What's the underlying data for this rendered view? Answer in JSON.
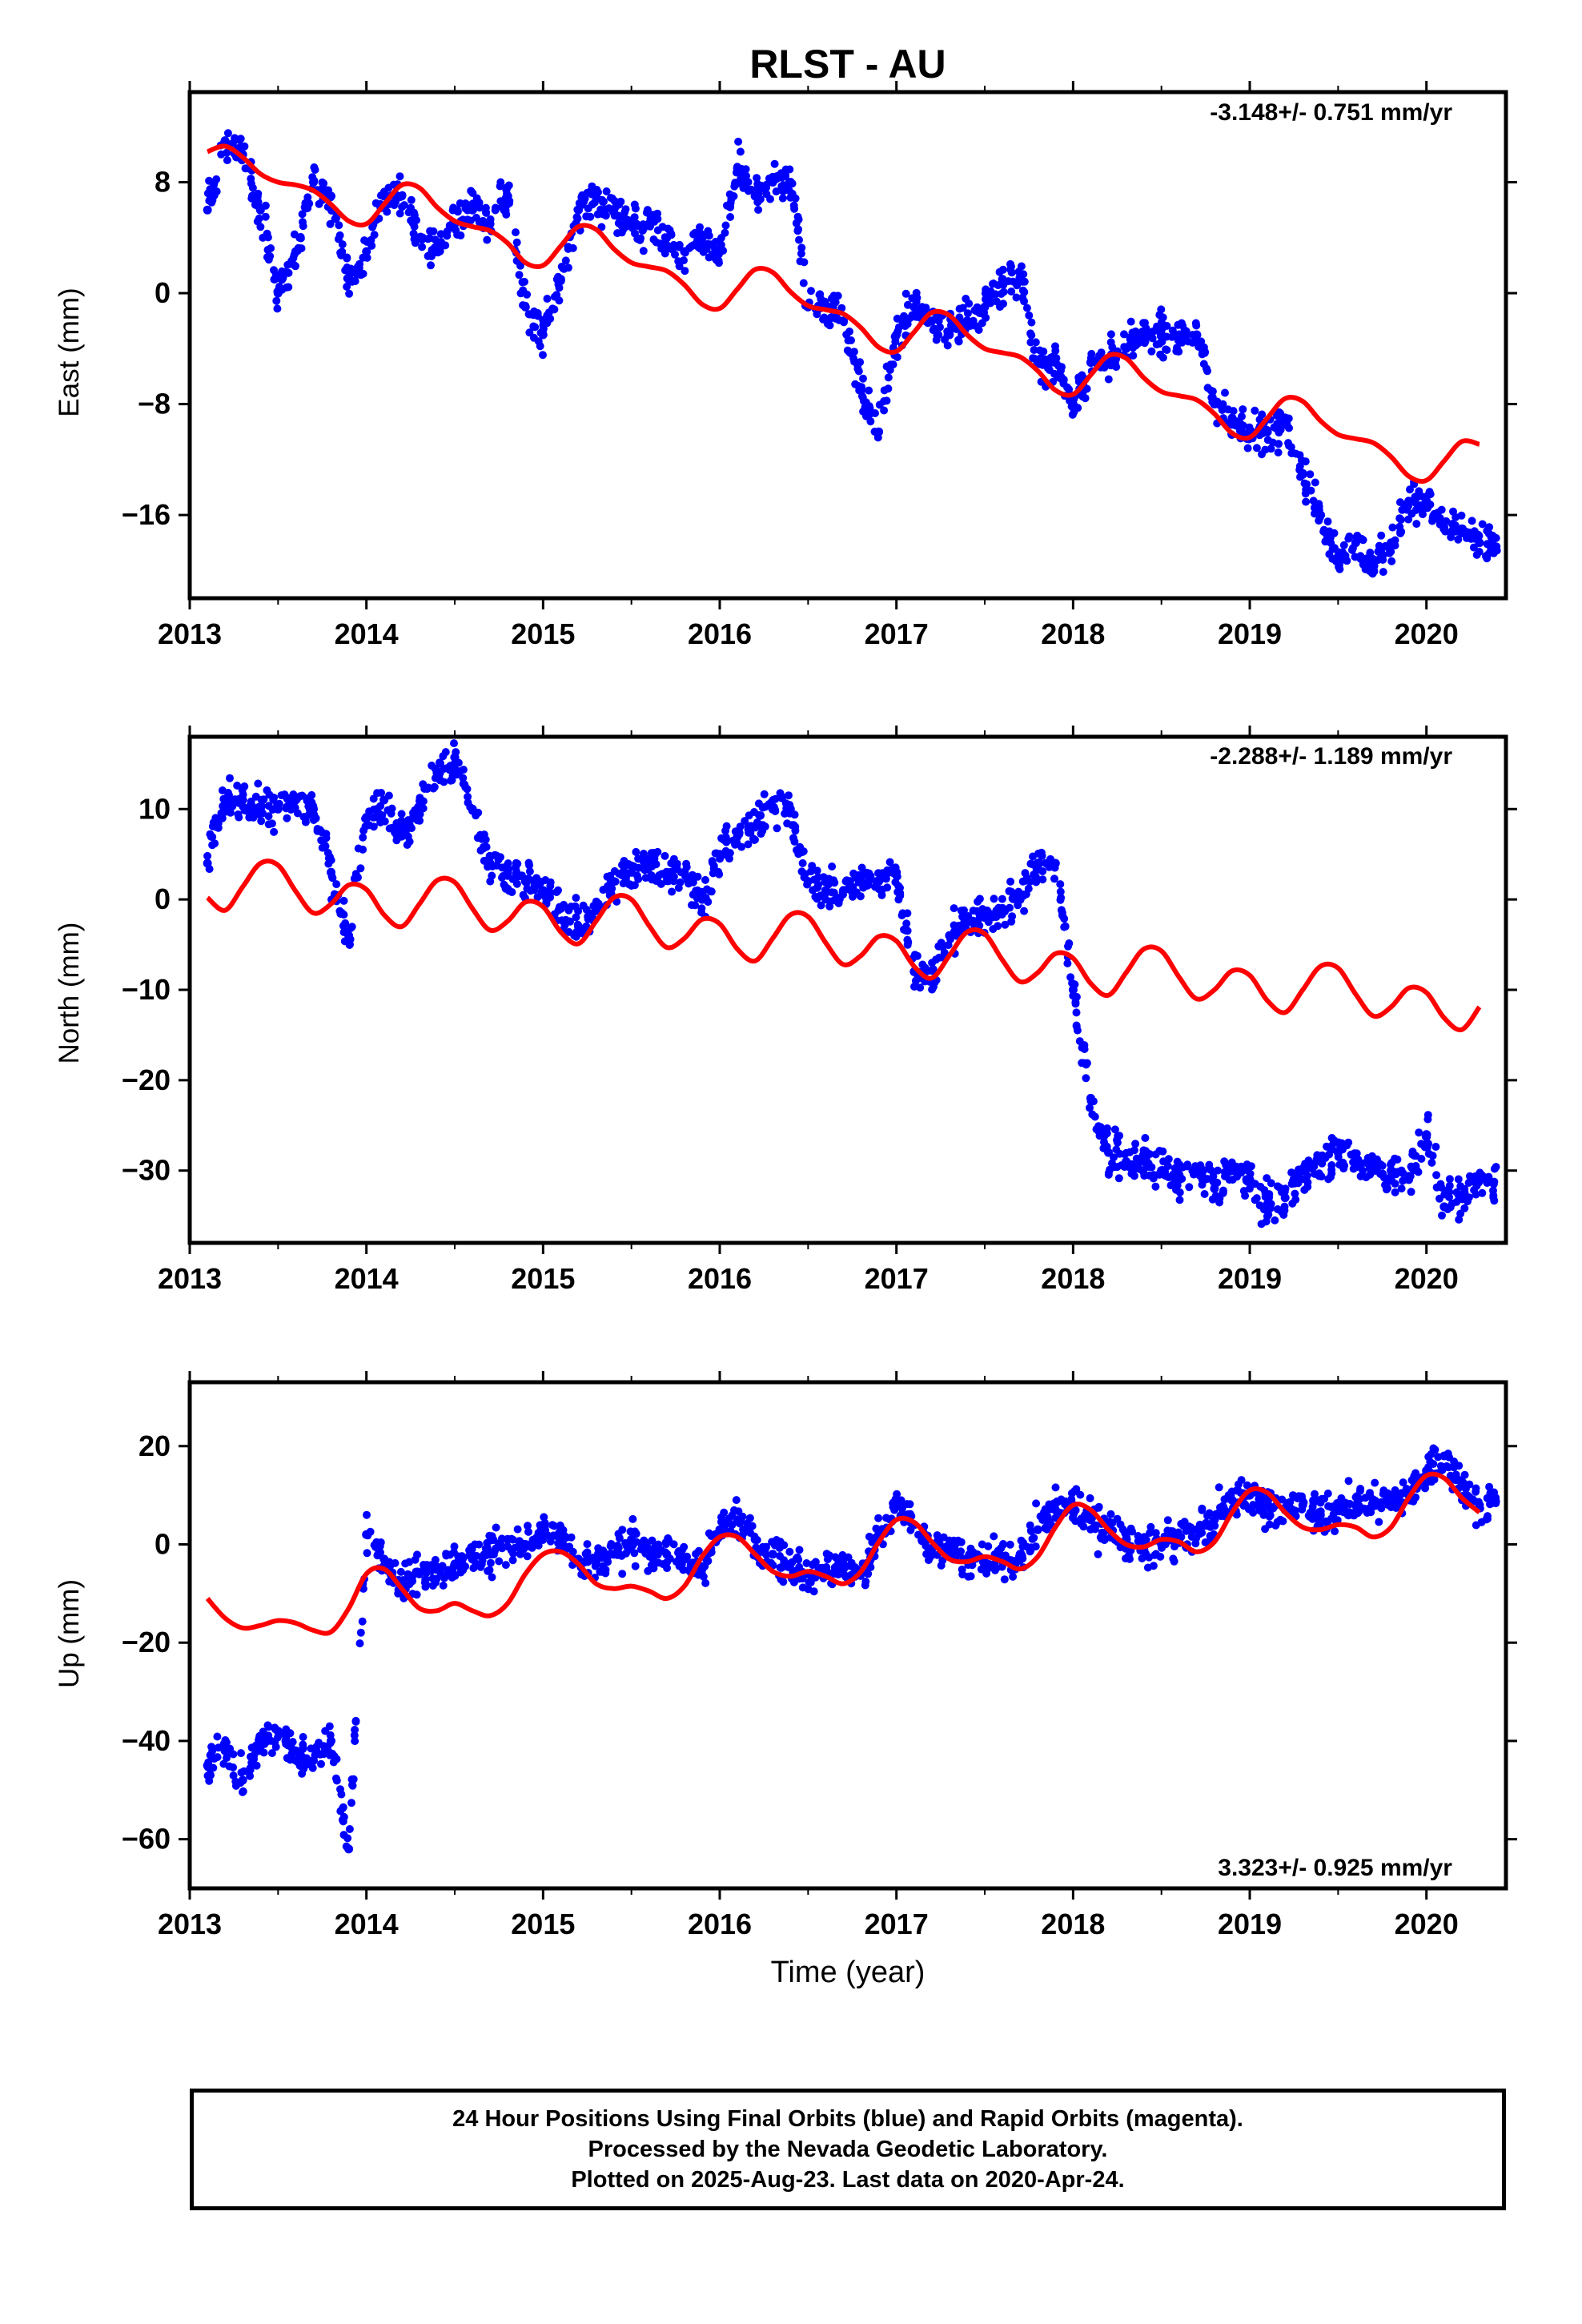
{
  "title": "RLST - AU",
  "colors": {
    "obs": "#0000ff",
    "model": "#ff0000",
    "frame": "#000000"
  },
  "xlabel": "Time (year)",
  "footer": {
    "line1": "24 Hour Positions Using Final Orbits (blue) and Rapid Orbits (magenta).",
    "line2": "Processed by the Nevada Geodetic Laboratory.",
    "line3": "Plotted on 2025-Aug-23. Last data on 2020-Apr-24."
  },
  "chart_data": [
    {
      "type": "scatter",
      "panel": "east",
      "ylabel": "East (mm)",
      "rate": "-3.148+/- 0.751 mm/yr",
      "rate_position": "top-right",
      "xlim": [
        2013.0,
        2020.45
      ],
      "ylim": [
        -22,
        14.5
      ],
      "xticks": [
        2013,
        2014,
        2015,
        2016,
        2017,
        2018,
        2019,
        2020
      ],
      "yticks": [
        8,
        0,
        -8,
        -16
      ],
      "ytick_labels": [
        "8",
        "0",
        "−8",
        "−16"
      ],
      "series": [
        {
          "role": "observations",
          "x": [
            2013.1,
            2013.2,
            2013.3,
            2013.4,
            2013.5,
            2013.6,
            2013.7,
            2013.8,
            2013.9,
            2014.0,
            2014.1,
            2014.2,
            2014.3,
            2014.4,
            2014.5,
            2014.6,
            2014.7,
            2014.8,
            2014.9,
            2015.0,
            2015.1,
            2015.2,
            2015.3,
            2015.4,
            2015.5,
            2015.6,
            2015.7,
            2015.8,
            2015.9,
            2016.0,
            2016.1,
            2016.2,
            2016.3,
            2016.4,
            2016.5,
            2016.6,
            2016.7,
            2016.8,
            2016.9,
            2017.0,
            2017.1,
            2017.2,
            2017.3,
            2017.4,
            2017.5,
            2017.6,
            2017.7,
            2017.8,
            2017.9,
            2018.0,
            2018.1,
            2018.2,
            2018.3,
            2018.4,
            2018.5,
            2018.6,
            2018.7,
            2018.8,
            2018.9,
            2019.0,
            2019.1,
            2019.2,
            2019.3,
            2019.4,
            2019.5,
            2019.6,
            2019.7,
            2019.8,
            2019.9,
            2020.0,
            2020.1,
            2020.2,
            2020.3
          ],
          "y": [
            6,
            11,
            10,
            6,
            0,
            3,
            8,
            7,
            1,
            3,
            7,
            7,
            4,
            3,
            5,
            6,
            5,
            7,
            -1,
            -3,
            1,
            6,
            7,
            6,
            5,
            5,
            4,
            3,
            4,
            3,
            9,
            7,
            8,
            8,
            -1,
            -1,
            -2,
            -7,
            -10,
            -3,
            -1,
            -2,
            -3,
            -2,
            -1,
            1,
            1,
            -5,
            -5,
            -8,
            -5,
            -5,
            -4,
            -3,
            -3,
            -3,
            -3,
            -8,
            -9,
            -10,
            -10,
            -9,
            -13,
            -16,
            -19,
            -18,
            -20,
            -18,
            -15,
            -15,
            -17,
            -17,
            -18
          ]
        },
        {
          "role": "model",
          "x": [
            2013.1,
            2013.2,
            2013.3,
            2013.4,
            2013.5,
            2013.6,
            2013.7,
            2013.8,
            2013.9,
            2014.0,
            2014.1,
            2014.2,
            2014.3,
            2014.4,
            2014.5,
            2014.6,
            2014.7,
            2014.8,
            2014.9,
            2015.0,
            2015.1,
            2015.2,
            2015.3,
            2015.4,
            2015.5,
            2015.6,
            2015.7,
            2015.8,
            2015.9,
            2016.0,
            2016.1,
            2016.2,
            2016.3,
            2016.4,
            2016.5,
            2016.6,
            2016.7,
            2016.8,
            2016.9,
            2017.0,
            2017.1,
            2017.2,
            2017.3,
            2017.4,
            2017.5,
            2017.6,
            2017.7,
            2017.8,
            2017.9,
            2018.0,
            2018.1,
            2018.2,
            2018.3,
            2018.4,
            2018.5,
            2018.6,
            2018.7,
            2018.8,
            2018.9,
            2019.0,
            2019.1,
            2019.2,
            2019.3,
            2019.4,
            2019.5,
            2019.6,
            2019.7,
            2019.8,
            2019.9,
            2020.0,
            2020.1,
            2020.2,
            2020.3
          ],
          "y": [
            10.2,
            10.6,
            9.8,
            8.6,
            8.0,
            7.8,
            7.4,
            6.4,
            5.2,
            5.0,
            6.4,
            7.8,
            7.6,
            6.2,
            5.2,
            4.8,
            4.5,
            3.6,
            2.2,
            2.0,
            3.4,
            4.8,
            4.6,
            3.2,
            2.2,
            1.9,
            1.6,
            0.6,
            -0.8,
            -1.1,
            0.3,
            1.7,
            1.5,
            0.1,
            -0.9,
            -1.2,
            -1.5,
            -2.5,
            -3.9,
            -4.2,
            -2.8,
            -1.4,
            -1.6,
            -3.0,
            -4.0,
            -4.3,
            -4.6,
            -5.6,
            -7.0,
            -7.3,
            -5.9,
            -4.5,
            -4.7,
            -6.1,
            -7.1,
            -7.4,
            -7.7,
            -8.7,
            -10.1,
            -10.4,
            -9.0,
            -7.6,
            -7.8,
            -9.2,
            -10.2,
            -10.5,
            -10.8,
            -11.8,
            -13.2,
            -13.5,
            -12.1,
            -10.7,
            -10.9
          ]
        }
      ]
    },
    {
      "type": "scatter",
      "panel": "north",
      "ylabel": "North (mm)",
      "rate": "-2.288+/- 1.189 mm/yr",
      "rate_position": "top-right",
      "xlim": [
        2013.0,
        2020.45
      ],
      "ylim": [
        -38,
        18
      ],
      "xticks": [
        2013,
        2014,
        2015,
        2016,
        2017,
        2018,
        2019,
        2020
      ],
      "yticks": [
        10,
        0,
        -10,
        -20,
        -30
      ],
      "ytick_labels": [
        "10",
        "0",
        "−10",
        "−20",
        "−30"
      ],
      "series": [
        {
          "role": "observations",
          "x": [
            2013.1,
            2013.2,
            2013.3,
            2013.4,
            2013.5,
            2013.6,
            2013.7,
            2013.8,
            2013.9,
            2014.0,
            2014.1,
            2014.2,
            2014.3,
            2014.4,
            2014.5,
            2014.6,
            2014.7,
            2014.8,
            2014.9,
            2015.0,
            2015.1,
            2015.2,
            2015.3,
            2015.4,
            2015.5,
            2015.6,
            2015.7,
            2015.8,
            2015.9,
            2016.0,
            2016.1,
            2016.2,
            2016.3,
            2016.4,
            2016.5,
            2016.6,
            2016.7,
            2016.8,
            2016.9,
            2017.0,
            2017.1,
            2017.2,
            2017.3,
            2017.4,
            2017.5,
            2017.6,
            2017.7,
            2017.8,
            2017.9,
            2018.0,
            2018.1,
            2018.2,
            2018.3,
            2018.4,
            2018.5,
            2018.6,
            2018.7,
            2018.8,
            2018.9,
            2019.0,
            2019.1,
            2019.2,
            2019.3,
            2019.4,
            2019.5,
            2019.6,
            2019.7,
            2019.8,
            2019.9,
            2020.0,
            2020.1,
            2020.2,
            2020.3
          ],
          "y": [
            4,
            11,
            11,
            10,
            10,
            11,
            10,
            3,
            -4,
            9,
            11,
            7,
            10,
            14,
            15,
            10,
            4,
            3,
            2,
            1,
            -1,
            -3,
            -1,
            2,
            3,
            4,
            3,
            3,
            0,
            5,
            7,
            8,
            10,
            10,
            2,
            1,
            1,
            2,
            2,
            3,
            -8,
            -9,
            -4,
            -2,
            -2,
            -1,
            0,
            4,
            4,
            -10,
            -22,
            -28,
            -29,
            -29,
            -30,
            -31,
            -30,
            -32,
            -30,
            -31,
            -34,
            -33,
            -30,
            -29,
            -28,
            -29,
            -30,
            -30,
            -31,
            -26,
            -34,
            -33,
            -31
          ]
        },
        {
          "role": "model",
          "x": [
            2013.1,
            2013.2,
            2013.3,
            2013.4,
            2013.5,
            2013.6,
            2013.7,
            2013.8,
            2013.9,
            2014.0,
            2014.1,
            2014.2,
            2014.3,
            2014.4,
            2014.5,
            2014.6,
            2014.7,
            2014.8,
            2014.9,
            2015.0,
            2015.1,
            2015.2,
            2015.3,
            2015.4,
            2015.5,
            2015.6,
            2015.7,
            2015.8,
            2015.9,
            2016.0,
            2016.1,
            2016.2,
            2016.3,
            2016.4,
            2016.5,
            2016.6,
            2016.7,
            2016.8,
            2016.9,
            2017.0,
            2017.1,
            2017.2,
            2017.3,
            2017.4,
            2017.5,
            2017.6,
            2017.7,
            2017.8,
            2017.9,
            2018.0,
            2018.1,
            2018.2,
            2018.3,
            2018.4,
            2018.5,
            2018.6,
            2018.7,
            2018.8,
            2018.9,
            2019.0,
            2019.1,
            2019.2,
            2019.3,
            2019.4,
            2019.5,
            2019.6,
            2019.7,
            2019.8,
            2019.9,
            2020.0,
            2020.1,
            2020.2,
            2020.3
          ],
          "y": [
            0.2,
            -1.2,
            1.4,
            4.0,
            3.8,
            0.9,
            -1.5,
            -0.5,
            1.6,
            1.1,
            -1.7,
            -3.0,
            -0.5,
            2.1,
            1.9,
            -1.0,
            -3.4,
            -2.4,
            -0.3,
            -0.8,
            -3.6,
            -4.9,
            -2.4,
            0.2,
            0.0,
            -2.9,
            -5.3,
            -4.3,
            -2.2,
            -2.7,
            -5.5,
            -6.8,
            -4.3,
            -1.7,
            -1.9,
            -4.8,
            -7.2,
            -6.2,
            -4.1,
            -4.6,
            -7.4,
            -8.7,
            -6.2,
            -3.6,
            -3.8,
            -6.7,
            -9.1,
            -8.1,
            -6.0,
            -6.5,
            -9.3,
            -10.6,
            -8.1,
            -5.5,
            -5.7,
            -8.6,
            -11.0,
            -10.0,
            -7.9,
            -8.4,
            -11.2,
            -12.5,
            -10.0,
            -7.4,
            -7.6,
            -10.5,
            -12.9,
            -11.9,
            -9.8,
            -10.3,
            -13.1,
            -14.4,
            -11.9
          ]
        }
      ]
    },
    {
      "type": "scatter",
      "panel": "up",
      "ylabel": "Up (mm)",
      "rate": "3.323+/- 0.925 mm/yr",
      "rate_position": "bottom-right",
      "xlim": [
        2013.0,
        2020.45
      ],
      "ylim": [
        -70,
        33
      ],
      "xticks": [
        2013,
        2014,
        2015,
        2016,
        2017,
        2018,
        2019,
        2020
      ],
      "yticks": [
        20,
        0,
        -20,
        -40,
        -60
      ],
      "ytick_labels": [
        "20",
        "0",
        "−20",
        "−40",
        "−60"
      ],
      "series": [
        {
          "role": "observations",
          "x": [
            2013.1,
            2013.2,
            2013.3,
            2013.4,
            2013.5,
            2013.6,
            2013.7,
            2013.8,
            2013.9,
            2014.0,
            2014.1,
            2014.2,
            2014.3,
            2014.4,
            2014.5,
            2014.6,
            2014.7,
            2014.8,
            2014.9,
            2015.0,
            2015.1,
            2015.2,
            2015.3,
            2015.4,
            2015.5,
            2015.6,
            2015.7,
            2015.8,
            2015.9,
            2016.0,
            2016.1,
            2016.2,
            2016.3,
            2016.4,
            2016.5,
            2016.6,
            2016.7,
            2016.8,
            2016.9,
            2017.0,
            2017.1,
            2017.2,
            2017.3,
            2017.4,
            2017.5,
            2017.6,
            2017.7,
            2017.8,
            2017.9,
            2018.0,
            2018.1,
            2018.2,
            2018.3,
            2018.4,
            2018.5,
            2018.6,
            2018.7,
            2018.8,
            2018.9,
            2019.0,
            2019.1,
            2019.2,
            2019.3,
            2019.4,
            2019.5,
            2019.6,
            2019.7,
            2019.8,
            2019.9,
            2020.0,
            2020.1,
            2020.2,
            2020.3
          ],
          "y": [
            -45,
            -42,
            -48,
            -40,
            -38,
            -42,
            -44,
            -40,
            -62,
            2,
            -3,
            -8,
            -6,
            -5,
            -4,
            -3,
            -2,
            1,
            0,
            3,
            2,
            -3,
            -4,
            -2,
            1,
            -1,
            -2,
            -3,
            -5,
            3,
            5,
            1,
            -2,
            -4,
            -6,
            -5,
            -5,
            -6,
            2,
            8,
            4,
            -1,
            -2,
            -3,
            -4,
            -3,
            -2,
            3,
            7,
            8,
            5,
            3,
            1,
            -1,
            0,
            1,
            3,
            5,
            9,
            10,
            8,
            7,
            8,
            6,
            7,
            8,
            9,
            8,
            10,
            15,
            18,
            12,
            8
          ]
        },
        {
          "role": "model",
          "x": [
            2013.1,
            2013.2,
            2013.3,
            2013.4,
            2013.5,
            2013.6,
            2013.7,
            2013.8,
            2013.9,
            2014.0,
            2014.1,
            2014.2,
            2014.3,
            2014.4,
            2014.5,
            2014.6,
            2014.7,
            2014.8,
            2014.9,
            2015.0,
            2015.1,
            2015.2,
            2015.3,
            2015.4,
            2015.5,
            2015.6,
            2015.7,
            2015.8,
            2015.9,
            2016.0,
            2016.1,
            2016.2,
            2016.3,
            2016.4,
            2016.5,
            2016.6,
            2016.7,
            2016.8,
            2016.9,
            2017.0,
            2017.1,
            2017.2,
            2017.3,
            2017.4,
            2017.5,
            2017.6,
            2017.7,
            2017.8,
            2017.9,
            2018.0,
            2018.1,
            2018.2,
            2018.3,
            2018.4,
            2018.5,
            2018.6,
            2018.7,
            2018.8,
            2018.9,
            2019.0,
            2019.1,
            2019.2,
            2019.3,
            2019.4,
            2019.5,
            2019.6,
            2019.7,
            2019.8,
            2019.9,
            2020.0,
            2020.1,
            2020.2,
            2020.3
          ],
          "y": [
            -11.0,
            -15.0,
            -17.0,
            -16.5,
            -15.5,
            -16.0,
            -17.5,
            -17.8,
            -13.0,
            -6.0,
            -5.0,
            -9.0,
            -13.0,
            -13.5,
            -12.0,
            -13.5,
            -14.5,
            -12.0,
            -6.0,
            -2.0,
            -1.5,
            -4.0,
            -8.0,
            -9.0,
            -8.5,
            -9.5,
            -11.0,
            -8.5,
            -2.5,
            1.5,
            1.5,
            -2.0,
            -5.5,
            -6.5,
            -5.5,
            -6.5,
            -8.0,
            -5.5,
            0.5,
            5.0,
            4.5,
            0.5,
            -3.0,
            -3.5,
            -2.5,
            -3.5,
            -5.0,
            -2.5,
            3.5,
            8.0,
            7.0,
            3.0,
            0.0,
            -0.5,
            1.0,
            0.5,
            -1.5,
            0.5,
            6.5,
            11.0,
            10.5,
            6.5,
            3.5,
            3.0,
            4.0,
            3.5,
            1.5,
            3.5,
            9.5,
            14.0,
            13.5,
            9.5,
            6.5
          ]
        }
      ]
    }
  ]
}
